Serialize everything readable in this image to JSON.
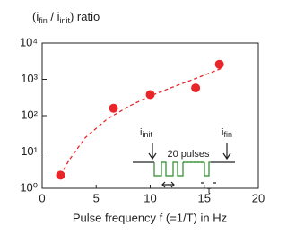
{
  "chart_data": {
    "type": "scatter",
    "title_parts": [
      "(i",
      "fin",
      " / i",
      "init",
      ") ratio"
    ],
    "xlabel": "Pulse frequency f (=1/T) in Hz",
    "x": [
      1.7,
      6.6,
      10.0,
      14.2,
      16.4
    ],
    "values": [
      2.3,
      160,
      380,
      580,
      2600
    ],
    "color": "#e8262a",
    "fit": {
      "x": [
        1.7,
        2.5,
        4,
        6,
        8,
        10,
        12,
        14,
        16.6
      ],
      "values": [
        2.3,
        6,
        25,
        80,
        180,
        350,
        600,
        1000,
        2000
      ],
      "color": "#e8262a"
    },
    "xlim": [
      0,
      20
    ],
    "xticks": [
      0,
      5,
      10,
      15,
      20
    ],
    "ylim": [
      1,
      10000
    ],
    "log_y": true,
    "yticks": [
      {
        "value": 1,
        "label": "10⁰"
      },
      {
        "value": 10,
        "label": "10¹"
      },
      {
        "value": 100,
        "label": "10²"
      },
      {
        "value": 1000,
        "label": "10³"
      },
      {
        "value": 10000,
        "label": "10⁴"
      }
    ],
    "inset": {
      "init_parts": [
        "i",
        "init"
      ],
      "fin_parts": [
        "i",
        "fin"
      ],
      "pulses": "20 pulses",
      "tau": "τ"
    }
  }
}
